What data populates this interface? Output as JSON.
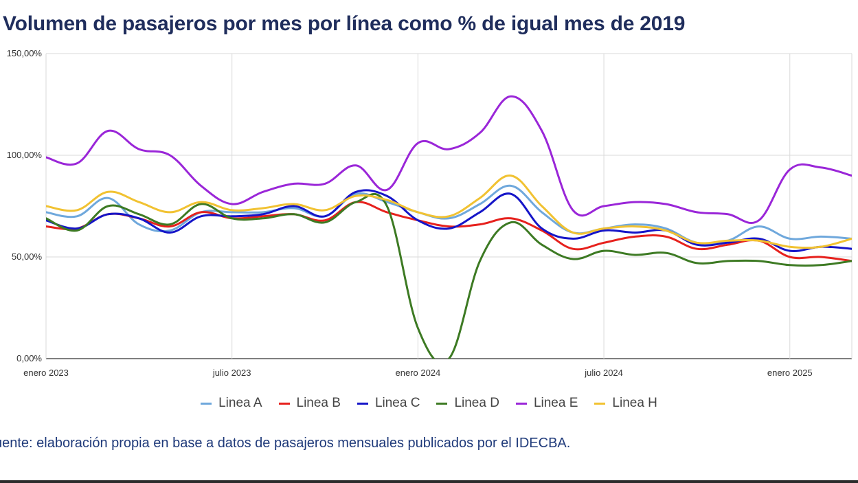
{
  "title": "Volumen de pasajeros por mes por línea como % de igual mes de 2019",
  "source": "uente: elaboración propia en base a datos de pasajeros mensuales publicados por el IDECBA.",
  "chart_data": {
    "type": "line",
    "title": "Volumen de pasajeros por mes por línea como % de igual mes de 2019",
    "xlabel": "",
    "ylabel": "",
    "x": [
      "2023-01",
      "2023-02",
      "2023-03",
      "2023-04",
      "2023-05",
      "2023-06",
      "2023-07",
      "2023-08",
      "2023-09",
      "2023-10",
      "2023-11",
      "2023-12",
      "2024-01",
      "2024-02",
      "2024-03",
      "2024-04",
      "2024-05",
      "2024-06",
      "2024-07",
      "2024-08",
      "2024-09",
      "2024-10",
      "2024-11",
      "2024-12",
      "2025-01",
      "2025-02",
      "2025-03"
    ],
    "x_ticks": [
      {
        "index": 0,
        "label": "enero 2023"
      },
      {
        "index": 6,
        "label": "julio 2023"
      },
      {
        "index": 12,
        "label": "enero 2024"
      },
      {
        "index": 18,
        "label": "julio 2024"
      },
      {
        "index": 24,
        "label": "enero 2025"
      }
    ],
    "y_ticks": [
      {
        "value": 0,
        "label": "0,00%"
      },
      {
        "value": 50,
        "label": "50,00%"
      },
      {
        "value": 100,
        "label": "100,00%"
      },
      {
        "value": 150,
        "label": "150,00%"
      }
    ],
    "ylim": [
      0,
      150
    ],
    "grid": true,
    "legend_position": "bottom",
    "series": [
      {
        "name": "Linea A",
        "color": "#6fa8dc",
        "values": [
          72,
          70,
          79,
          66,
          63,
          72,
          72,
          72,
          74,
          70,
          81,
          77,
          72,
          69,
          76,
          85,
          72,
          62,
          64,
          66,
          64,
          57,
          58,
          65,
          59,
          60,
          59
        ]
      },
      {
        "name": "Linea B",
        "color": "#e6211d",
        "values": [
          65,
          64,
          71,
          69,
          65,
          72,
          69,
          70,
          71,
          68,
          77,
          72,
          68,
          65,
          66,
          69,
          63,
          54,
          57,
          60,
          60,
          54,
          56,
          58,
          50,
          50,
          48
        ]
      },
      {
        "name": "Linea C",
        "color": "#1515c8",
        "values": [
          68,
          64,
          71,
          69,
          62,
          70,
          70,
          71,
          75,
          70,
          82,
          80,
          68,
          64,
          72,
          81,
          64,
          59,
          63,
          62,
          63,
          56,
          57,
          59,
          53,
          55,
          54
        ]
      },
      {
        "name": "Linea D",
        "color": "#3d7a23",
        "values": [
          69,
          63,
          75,
          71,
          66,
          76,
          69,
          69,
          71,
          67,
          77,
          75,
          15,
          0,
          48,
          67,
          56,
          49,
          53,
          51,
          52,
          47,
          48,
          48,
          46,
          46,
          48
        ]
      },
      {
        "name": "Linea E",
        "color": "#9a26d8",
        "values": [
          99,
          96,
          112,
          103,
          100,
          85,
          76,
          82,
          86,
          86,
          95,
          83,
          106,
          103,
          111,
          129,
          112,
          73,
          75,
          77,
          76,
          72,
          71,
          68,
          93,
          94,
          90
        ]
      },
      {
        "name": "Linea H",
        "color": "#f1c232",
        "values": [
          75,
          73,
          82,
          77,
          72,
          77,
          73,
          74,
          76,
          73,
          80,
          78,
          72,
          70,
          79,
          90,
          75,
          62,
          64,
          65,
          63,
          57,
          58,
          58,
          55,
          55,
          59
        ]
      }
    ]
  }
}
